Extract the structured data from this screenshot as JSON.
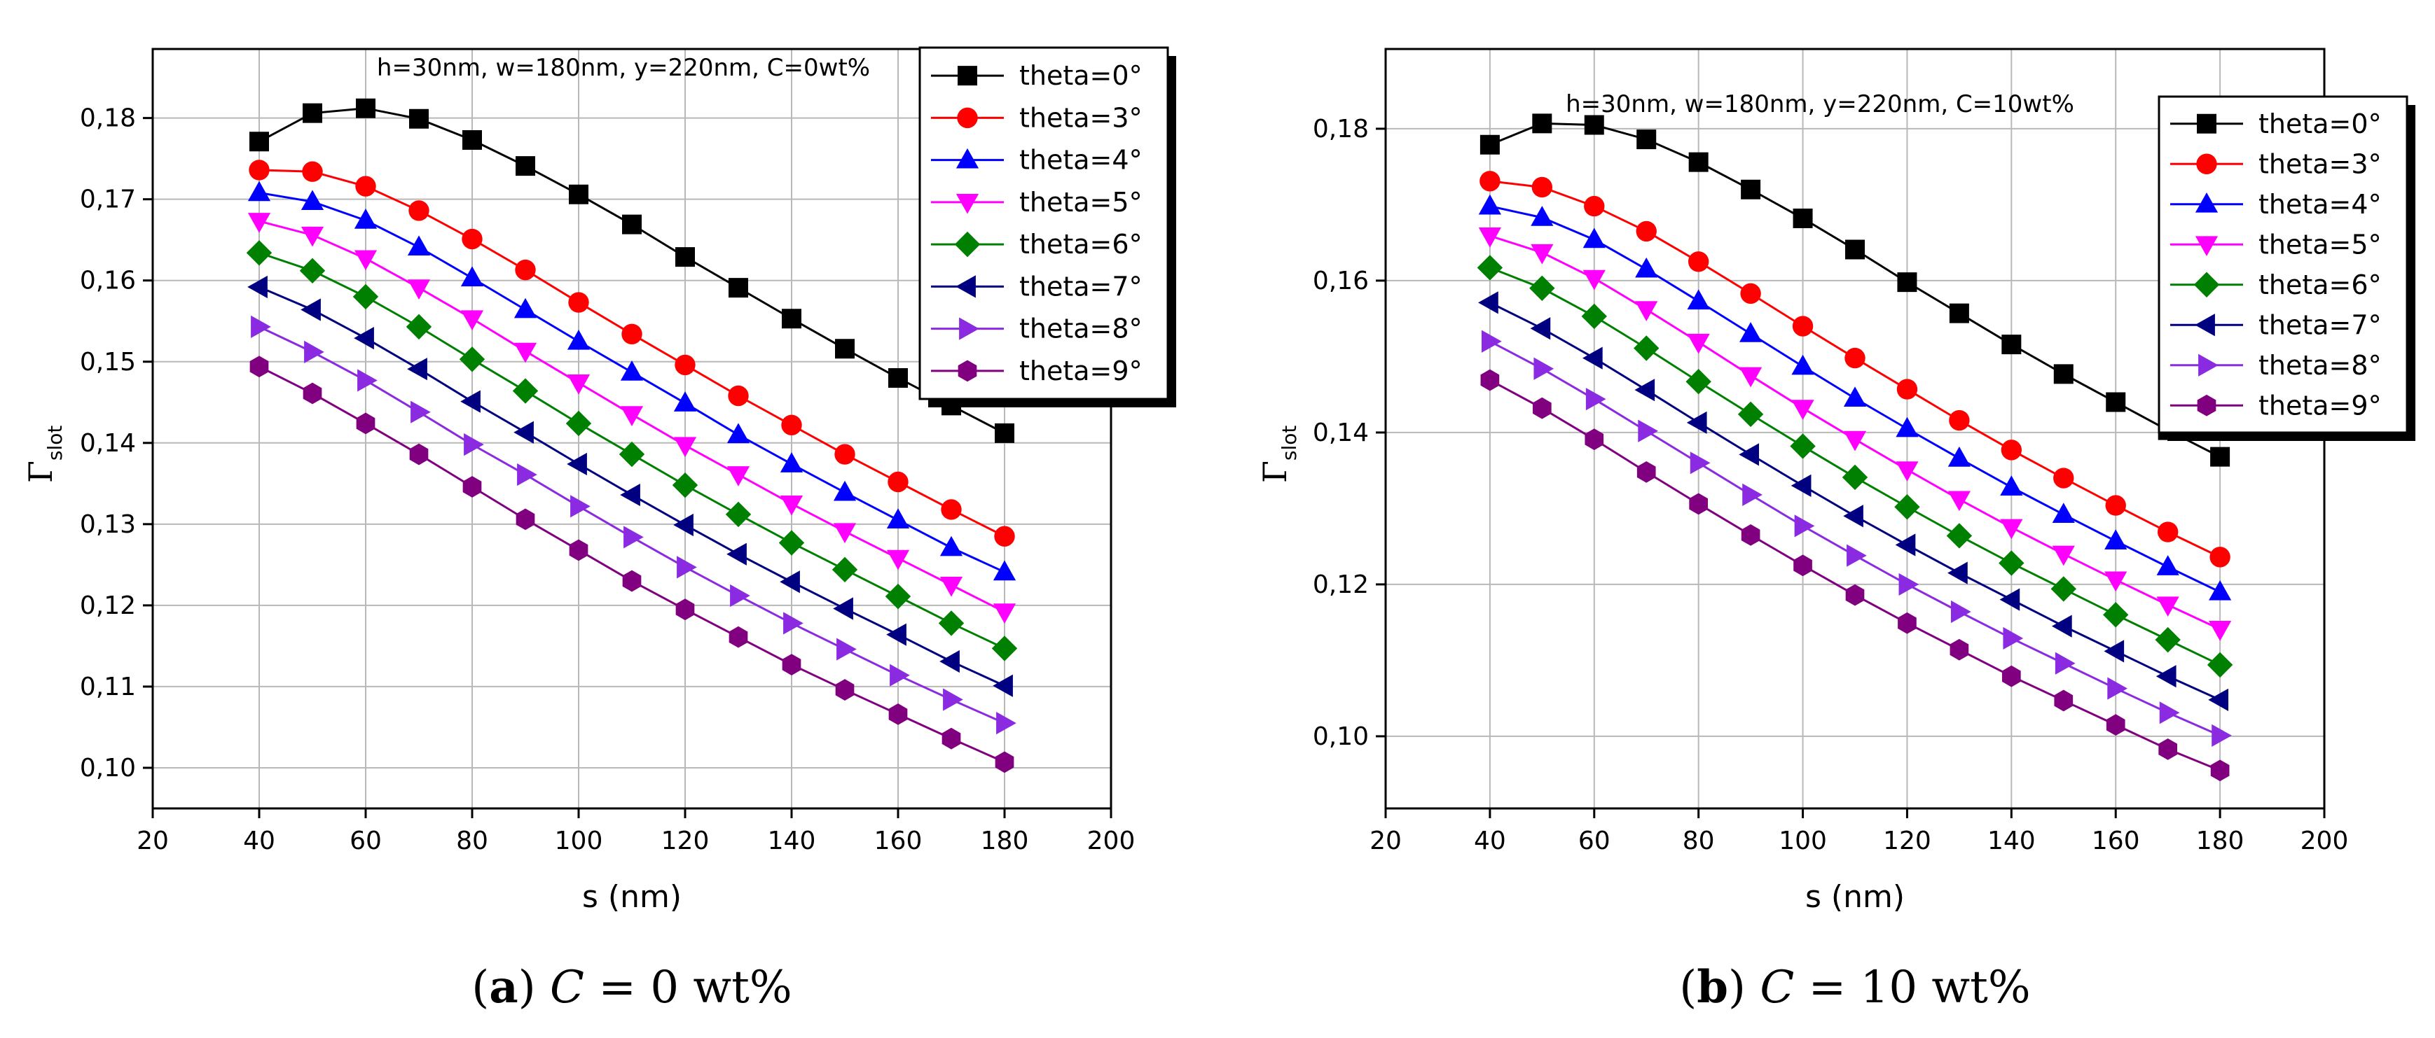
{
  "chart_data": [
    {
      "type": "line",
      "title": "h=30nm, w=180nm, y=220nm, C=0wt%",
      "xlabel": "s (nm)",
      "ylabel": "Γ",
      "ylabel_sub": "slot",
      "xlim": [
        20,
        200
      ],
      "ylim": [
        0.095,
        0.1885
      ],
      "xticks": [
        "20",
        "40",
        "60",
        "80",
        "100",
        "120",
        "140",
        "160",
        "180",
        "200"
      ],
      "yticks": [
        "0,10",
        "0,11",
        "0,12",
        "0,13",
        "0,14",
        "0,15",
        "0,16",
        "0,17",
        "0,18"
      ],
      "ytick_values": [
        0.1,
        0.11,
        0.12,
        0.13,
        0.14,
        0.15,
        0.16,
        0.17,
        0.18
      ],
      "grid": true,
      "legend_position": "top-right",
      "caption_tag": "a",
      "caption_var": "C",
      "caption_rest": " = 0 wt%",
      "x": [
        40,
        50,
        60,
        70,
        80,
        90,
        100,
        110,
        120,
        130,
        140,
        150,
        160,
        170,
        180
      ],
      "series": [
        {
          "name": "theta=0°",
          "color": "#000000",
          "marker": "square",
          "values": [
            0.1771,
            0.1806,
            0.1812,
            0.1799,
            0.1773,
            0.1741,
            0.1706,
            0.1669,
            0.1629,
            0.1591,
            0.1553,
            0.1516,
            0.148,
            0.1446,
            0.1412
          ]
        },
        {
          "name": "theta=3°",
          "color": "#ff0000",
          "marker": "circle",
          "values": [
            0.1736,
            0.1734,
            0.1716,
            0.1686,
            0.1651,
            0.1613,
            0.1573,
            0.1534,
            0.1496,
            0.1458,
            0.1422,
            0.1386,
            0.1352,
            0.1318,
            0.1285
          ]
        },
        {
          "name": "theta=4°",
          "color": "#0000ff",
          "marker": "triangle-up",
          "values": [
            0.1708,
            0.1697,
            0.1674,
            0.1641,
            0.1603,
            0.1564,
            0.1525,
            0.1487,
            0.1449,
            0.141,
            0.1374,
            0.1339,
            0.1305,
            0.1271,
            0.1241
          ]
        },
        {
          "name": "theta=5°",
          "color": "#ff00ff",
          "marker": "triangle-down",
          "values": [
            0.1673,
            0.1656,
            0.1627,
            0.1591,
            0.1553,
            0.1513,
            0.1474,
            0.1435,
            0.1397,
            0.1361,
            0.1325,
            0.1291,
            0.1258,
            0.1225,
            0.1192
          ]
        },
        {
          "name": "theta=6°",
          "color": "#008000",
          "marker": "diamond",
          "values": [
            0.1634,
            0.1612,
            0.158,
            0.1543,
            0.1503,
            0.1464,
            0.1424,
            0.1386,
            0.1348,
            0.1312,
            0.1277,
            0.1244,
            0.1211,
            0.1178,
            0.1147
          ]
        },
        {
          "name": "theta=7°",
          "color": "#000080",
          "marker": "triangle-left",
          "values": [
            0.1592,
            0.1564,
            0.1529,
            0.1491,
            0.1451,
            0.1413,
            0.1374,
            0.1336,
            0.1299,
            0.1263,
            0.1229,
            0.1196,
            0.1164,
            0.1131,
            0.1101
          ]
        },
        {
          "name": "theta=8°",
          "color": "#8a2be2",
          "marker": "triangle-right",
          "values": [
            0.1543,
            0.1512,
            0.1477,
            0.1438,
            0.1398,
            0.1361,
            0.1322,
            0.1284,
            0.1247,
            0.1212,
            0.1178,
            0.1146,
            0.1114,
            0.1084,
            0.1055
          ]
        },
        {
          "name": "theta=9°",
          "color": "#800080",
          "marker": "hexagon",
          "values": [
            0.1494,
            0.1461,
            0.1424,
            0.1386,
            0.1346,
            0.1306,
            0.1268,
            0.123,
            0.1195,
            0.1161,
            0.1127,
            0.1096,
            0.1066,
            0.1036,
            0.1007
          ]
        }
      ]
    },
    {
      "type": "line",
      "title": "h=30nm, w=180nm, y=220nm, C=10wt%",
      "xlabel": "s (nm)",
      "ylabel": "Γ",
      "ylabel_sub": "slot",
      "xlim": [
        20,
        200
      ],
      "ylim": [
        0.0905,
        0.1905
      ],
      "xticks": [
        "20",
        "40",
        "60",
        "80",
        "100",
        "120",
        "140",
        "160",
        "180",
        "200"
      ],
      "yticks": [
        "0,10",
        "0,12",
        "0,14",
        "0,16",
        "0,18"
      ],
      "ytick_values": [
        0.1,
        0.12,
        0.14,
        0.16,
        0.18
      ],
      "grid": true,
      "legend_position": "top-right",
      "caption_tag": "b",
      "caption_var": "C",
      "caption_rest": " = 10 wt%",
      "x": [
        40,
        50,
        60,
        70,
        80,
        90,
        100,
        110,
        120,
        130,
        140,
        150,
        160,
        170,
        180
      ],
      "series": [
        {
          "name": "theta=0°",
          "color": "#000000",
          "marker": "square",
          "values": [
            0.1779,
            0.1807,
            0.1805,
            0.1786,
            0.1756,
            0.172,
            0.1682,
            0.1641,
            0.1598,
            0.1557,
            0.1516,
            0.1477,
            0.144,
            0.1403,
            0.1368
          ]
        },
        {
          "name": "theta=3°",
          "color": "#ff0000",
          "marker": "circle",
          "values": [
            0.1731,
            0.1723,
            0.1698,
            0.1665,
            0.1625,
            0.1583,
            0.154,
            0.1498,
            0.1457,
            0.1416,
            0.1377,
            0.134,
            0.1304,
            0.1269,
            0.1236
          ]
        },
        {
          "name": "theta=4°",
          "color": "#0000ff",
          "marker": "triangle-up",
          "values": [
            0.1698,
            0.1683,
            0.1654,
            0.1615,
            0.1573,
            0.153,
            0.1487,
            0.1445,
            0.1405,
            0.1366,
            0.1328,
            0.1292,
            0.1257,
            0.1223,
            0.119
          ]
        },
        {
          "name": "theta=5°",
          "color": "#ff00ff",
          "marker": "triangle-down",
          "values": [
            0.1659,
            0.1637,
            0.1603,
            0.1562,
            0.1519,
            0.1475,
            0.1432,
            0.1391,
            0.1351,
            0.1312,
            0.1275,
            0.124,
            0.1206,
            0.1173,
            0.1141
          ]
        },
        {
          "name": "theta=6°",
          "color": "#008000",
          "marker": "diamond",
          "values": [
            0.1617,
            0.159,
            0.1553,
            0.1511,
            0.1467,
            0.1424,
            0.1382,
            0.1341,
            0.1302,
            0.1264,
            0.1228,
            0.1194,
            0.116,
            0.1127,
            0.1094
          ]
        },
        {
          "name": "theta=7°",
          "color": "#000080",
          "marker": "triangle-left",
          "values": [
            0.1571,
            0.1537,
            0.1498,
            0.1456,
            0.1413,
            0.1371,
            0.133,
            0.129,
            0.1252,
            0.1215,
            0.118,
            0.1145,
            0.1112,
            0.1079,
            0.1048
          ]
        },
        {
          "name": "theta=8°",
          "color": "#8a2be2",
          "marker": "triangle-right",
          "values": [
            0.152,
            0.1484,
            0.1444,
            0.1402,
            0.136,
            0.1318,
            0.1277,
            0.1238,
            0.12,
            0.1164,
            0.1129,
            0.1096,
            0.1063,
            0.1031,
            0.1001
          ]
        },
        {
          "name": "theta=9°",
          "color": "#800080",
          "marker": "hexagon",
          "values": [
            0.1469,
            0.1432,
            0.1391,
            0.1348,
            0.1306,
            0.1265,
            0.1225,
            0.1186,
            0.1149,
            0.1114,
            0.1079,
            0.1047,
            0.1015,
            0.0983,
            0.0955
          ]
        }
      ]
    }
  ]
}
